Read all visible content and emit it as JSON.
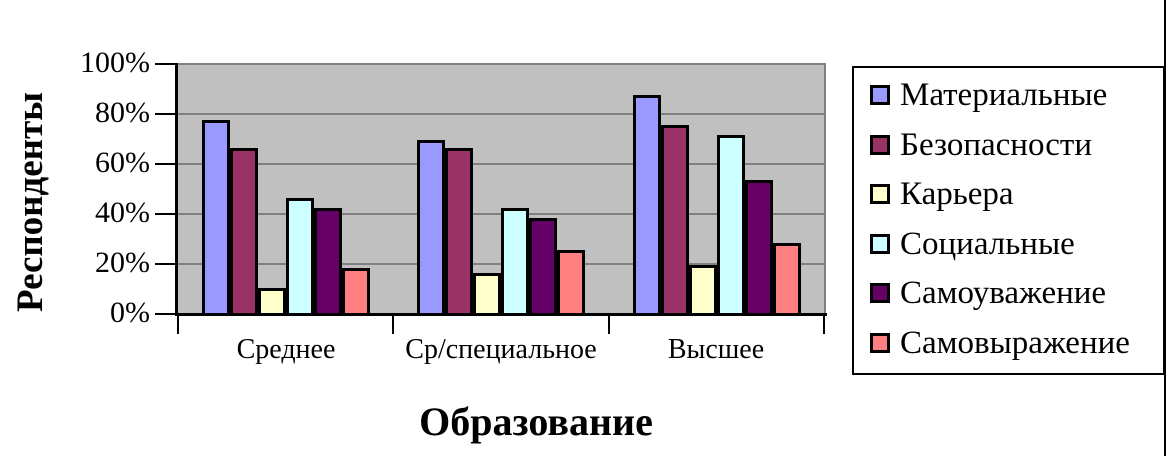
{
  "chart_data": {
    "type": "bar",
    "title": "",
    "xlabel": "Образование",
    "ylabel": "Респонденты",
    "categories": [
      "Среднее",
      "Ср/специальное",
      "Высшее"
    ],
    "series": [
      {
        "name": "Материальные",
        "color": "#9999FF",
        "values": [
          77,
          69,
          87
        ]
      },
      {
        "name": "Безопасности",
        "color": "#993366",
        "values": [
          66,
          66,
          75
        ]
      },
      {
        "name": "Карьера",
        "color": "#FFFFCC",
        "values": [
          10,
          16,
          19
        ]
      },
      {
        "name": "Социальные",
        "color": "#CCFFFF",
        "values": [
          46,
          42,
          71
        ]
      },
      {
        "name": "Самоуважение",
        "color": "#660066",
        "values": [
          42,
          38,
          53
        ]
      },
      {
        "name": "Самовыражение",
        "color": "#FF8080",
        "values": [
          18,
          25,
          28
        ]
      }
    ],
    "ylim": [
      0,
      100
    ],
    "yticks": [
      {
        "value": 0,
        "label": "0%"
      },
      {
        "value": 20,
        "label": "20%"
      },
      {
        "value": 40,
        "label": "40%"
      },
      {
        "value": 60,
        "label": "60%"
      },
      {
        "value": 80,
        "label": "80%"
      },
      {
        "value": 100,
        "label": "100%"
      }
    ],
    "grid": true,
    "legend_position": "right",
    "colors": {
      "plot_bg": "#C0C0C0",
      "gridline": "#808080",
      "axis": "#000000",
      "bar_border": "#000000",
      "text": "#000000"
    }
  }
}
